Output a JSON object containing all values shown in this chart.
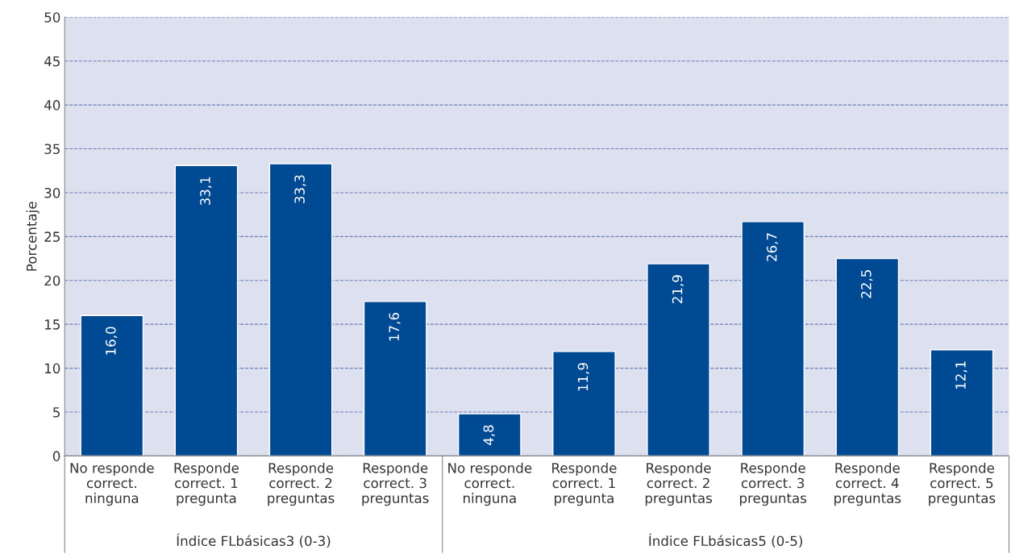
{
  "chart_data": {
    "type": "bar",
    "ylabel": "Porcentaje",
    "categories": [
      "No responde\ncorrect.\nninguna",
      "Responde\ncorrect. 1\npregunta",
      "Responde\ncorrect. 2\npreguntas",
      "Responde\ncorrect. 3\npreguntas",
      "No responde\ncorrect.\nninguna",
      "Responde\ncorrect. 1\npregunta",
      "Responde\ncorrect. 2\npreguntas",
      "Responde\ncorrect. 3\npreguntas",
      "Responde\ncorrect. 4\npreguntas",
      "Responde\ncorrect. 5\npreguntas"
    ],
    "values": [
      16.0,
      33.1,
      33.3,
      17.6,
      4.8,
      11.9,
      21.9,
      26.7,
      22.5,
      12.1
    ],
    "value_labels": [
      "16,0",
      "33,1",
      "33,3",
      "17,6",
      "4,8",
      "11,9",
      "21,9",
      "26,7",
      "22,5",
      "12,1"
    ],
    "color": "#004a93",
    "ylim": [
      0,
      50
    ],
    "yticks": [
      0,
      5,
      10,
      15,
      20,
      25,
      30,
      35,
      40,
      45,
      50
    ],
    "grid": "y",
    "annotations": [
      "Índice FLbásicas3 (0-3)",
      "Índice FLbásicas5 (0-5)"
    ]
  }
}
